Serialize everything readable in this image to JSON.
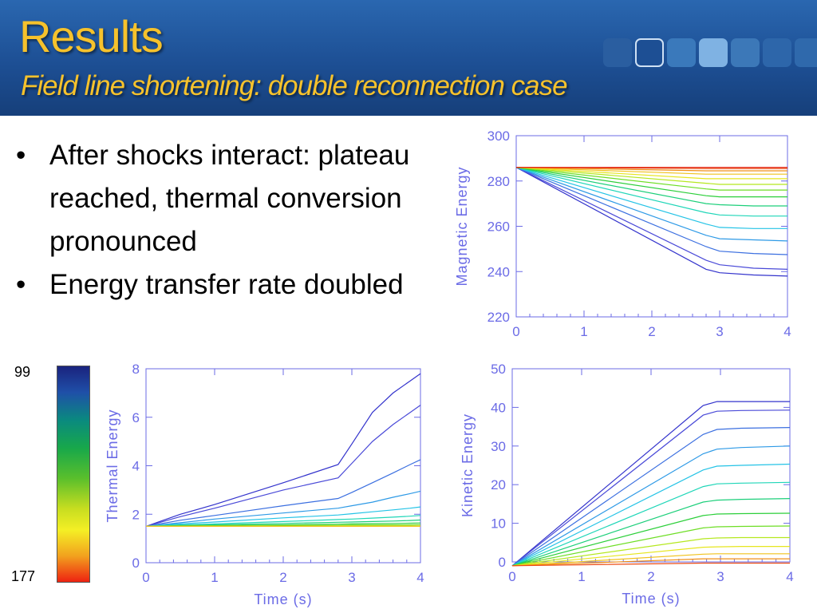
{
  "slide": {
    "title": "Results",
    "subtitle": "Field line shortening: double reconnection case",
    "bullets": [
      "After shocks interact: plateau reached, thermal conversion pronounced",
      "Energy transfer rate doubled"
    ],
    "colorbar": {
      "top_label": "99",
      "bottom_label": "177"
    }
  },
  "colors": {
    "title": "#f6c22c",
    "axis": "#6b6be6",
    "header_bg": "#1d4f94"
  },
  "chart_data": [
    {
      "type": "line",
      "ylabel": "Magnetic Energy",
      "xlabel": "",
      "xlim": [
        0,
        4
      ],
      "ylim": [
        220,
        300
      ],
      "xticks": [
        0,
        1,
        2,
        3,
        4
      ],
      "yticks": [
        220,
        240,
        260,
        280,
        300
      ],
      "x": [
        0,
        2.8,
        3.0,
        3.5,
        4.0
      ],
      "series": [
        {
          "values": [
            286,
            241,
            239.5,
            238.5,
            238
          ]
        },
        {
          "values": [
            286,
            245,
            243,
            241.5,
            241
          ]
        },
        {
          "values": [
            286,
            251,
            249,
            248,
            247.5
          ]
        },
        {
          "values": [
            286,
            256,
            254.5,
            254,
            253.5
          ]
        },
        {
          "values": [
            286,
            261,
            259.5,
            259,
            259
          ]
        },
        {
          "values": [
            286,
            266,
            265,
            264.5,
            264.5
          ]
        },
        {
          "values": [
            286,
            270,
            269.5,
            269,
            269
          ]
        },
        {
          "values": [
            286,
            273.5,
            273,
            273,
            273
          ]
        },
        {
          "values": [
            286,
            276.5,
            276,
            276,
            276
          ]
        },
        {
          "values": [
            286,
            279,
            278.5,
            278.5,
            278.5
          ]
        },
        {
          "values": [
            286,
            281,
            281,
            281,
            281
          ]
        },
        {
          "values": [
            286,
            283,
            283,
            283,
            283
          ]
        },
        {
          "values": [
            286,
            284.5,
            284.5,
            284.5,
            284.5
          ]
        },
        {
          "values": [
            286,
            285.5,
            285.5,
            285.5,
            285.5
          ]
        },
        {
          "values": [
            286,
            286,
            286,
            286,
            286
          ]
        }
      ]
    },
    {
      "type": "line",
      "ylabel": "Thermal Energy",
      "xlabel": "Time (s)",
      "xlim": [
        0,
        4
      ],
      "ylim": [
        0,
        8
      ],
      "xticks": [
        0,
        1,
        2,
        3,
        4
      ],
      "yticks": [
        0,
        2,
        4,
        6,
        8
      ],
      "x": [
        0,
        0.5,
        1.0,
        2.0,
        2.8,
        3.0,
        3.3,
        3.6,
        3.85,
        4.0
      ],
      "series": [
        {
          "values": [
            1.5,
            2.0,
            2.4,
            3.3,
            4.05,
            4.9,
            6.2,
            7.0,
            7.5,
            7.8
          ]
        },
        {
          "values": [
            1.5,
            1.9,
            2.25,
            3.0,
            3.5,
            4.1,
            5.0,
            5.7,
            6.2,
            6.5
          ]
        },
        {
          "values": [
            1.5,
            1.75,
            1.95,
            2.35,
            2.65,
            2.9,
            3.3,
            3.7,
            4.05,
            4.25
          ]
        },
        {
          "values": [
            1.5,
            1.65,
            1.8,
            2.05,
            2.25,
            2.35,
            2.5,
            2.7,
            2.85,
            2.95
          ]
        },
        {
          "values": [
            1.5,
            1.6,
            1.68,
            1.85,
            1.97,
            2.02,
            2.1,
            2.18,
            2.25,
            2.3
          ]
        },
        {
          "values": [
            1.5,
            1.56,
            1.6,
            1.7,
            1.78,
            1.8,
            1.84,
            1.88,
            1.92,
            1.95
          ]
        },
        {
          "values": [
            1.5,
            1.54,
            1.56,
            1.62,
            1.67,
            1.68,
            1.7,
            1.72,
            1.74,
            1.76
          ]
        },
        {
          "values": [
            1.5,
            1.52,
            1.53,
            1.56,
            1.59,
            1.6,
            1.61,
            1.62,
            1.63,
            1.64
          ]
        },
        {
          "values": [
            1.5,
            1.51,
            1.52,
            1.53,
            1.54,
            1.55,
            1.55,
            1.56,
            1.56,
            1.57
          ]
        },
        {
          "values": [
            1.5,
            1.5,
            1.51,
            1.51,
            1.52,
            1.52,
            1.52,
            1.52,
            1.52,
            1.52
          ]
        },
        {
          "values": [
            1.5,
            1.5,
            1.5,
            1.5,
            1.5,
            1.5,
            1.5,
            1.5,
            1.5,
            1.5
          ]
        },
        {
          "values": [
            1.5,
            1.5,
            1.5,
            1.5,
            1.5,
            1.5,
            1.5,
            1.5,
            1.5,
            1.5
          ]
        }
      ]
    },
    {
      "type": "line",
      "ylabel": "Kinetic Energy",
      "xlabel": "Time (s)",
      "xlim": [
        0,
        4
      ],
      "ylim": [
        0,
        50
      ],
      "xticks": [
        0,
        1,
        2,
        3,
        4
      ],
      "yticks": [
        0,
        10,
        20,
        30,
        40,
        50
      ],
      "x": [
        0,
        2.75,
        2.95,
        3.3,
        4.0
      ],
      "series": [
        {
          "values": [
            -1,
            40.5,
            41.5,
            41.5,
            41.5
          ]
        },
        {
          "values": [
            -1,
            38,
            39,
            39.2,
            39.3
          ]
        },
        {
          "values": [
            -1,
            33,
            34.3,
            34.6,
            34.8
          ]
        },
        {
          "values": [
            -1,
            28,
            29.2,
            29.6,
            30
          ]
        },
        {
          "values": [
            -1,
            23.8,
            24.8,
            25.0,
            25.3
          ]
        },
        {
          "values": [
            -1,
            19.5,
            20.2,
            20.4,
            20.6
          ]
        },
        {
          "values": [
            -1,
            15.5,
            16.0,
            16.2,
            16.4
          ]
        },
        {
          "values": [
            -1,
            12.0,
            12.4,
            12.5,
            12.6
          ]
        },
        {
          "values": [
            -1,
            8.8,
            9.1,
            9.2,
            9.3
          ]
        },
        {
          "values": [
            -1,
            6.0,
            6.2,
            6.3,
            6.3
          ]
        },
        {
          "values": [
            -1,
            3.8,
            3.9,
            4.0,
            4.0
          ]
        },
        {
          "values": [
            -1,
            2.0,
            2.1,
            2.1,
            2.1
          ]
        },
        {
          "values": [
            -1,
            0.8,
            0.8,
            0.8,
            0.8
          ]
        },
        {
          "values": [
            -1,
            -0.3,
            -0.3,
            -0.3,
            -0.3
          ]
        }
      ]
    }
  ]
}
